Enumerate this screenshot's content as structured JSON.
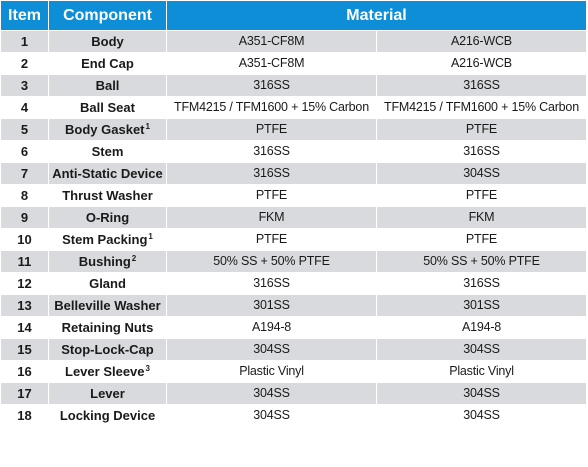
{
  "header": {
    "item": "Item",
    "component": "Component",
    "material": "Material"
  },
  "rows": [
    {
      "item": "1",
      "component": "Body",
      "fn": "",
      "material_1": "A351-CF8M",
      "material_2": "A216-WCB"
    },
    {
      "item": "2",
      "component": "End Cap",
      "fn": "",
      "material_1": "A351-CF8M",
      "material_2": "A216-WCB"
    },
    {
      "item": "3",
      "component": "Ball",
      "fn": "",
      "material_1": "316SS",
      "material_2": "316SS"
    },
    {
      "item": "4",
      "component": "Ball Seat",
      "fn": "",
      "material_1": "TFM4215 / TFM1600 + 15% Carbon",
      "material_2": "TFM4215 / TFM1600 + 15% Carbon"
    },
    {
      "item": "5",
      "component": "Body Gasket",
      "fn": "1",
      "material_1": "PTFE",
      "material_2": "PTFE"
    },
    {
      "item": "6",
      "component": "Stem",
      "fn": "",
      "material_1": "316SS",
      "material_2": "316SS"
    },
    {
      "item": "7",
      "component": "Anti-Static Device",
      "fn": "",
      "material_1": "316SS",
      "material_2": "304SS"
    },
    {
      "item": "8",
      "component": "Thrust Washer",
      "fn": "",
      "material_1": "PTFE",
      "material_2": "PTFE"
    },
    {
      "item": "9",
      "component": "O-Ring",
      "fn": "",
      "material_1": "FKM",
      "material_2": "FKM"
    },
    {
      "item": "10",
      "component": "Stem Packing",
      "fn": "1",
      "material_1": "PTFE",
      "material_2": "PTFE"
    },
    {
      "item": "11",
      "component": "Bushing",
      "fn": "2",
      "material_1": "50% SS + 50% PTFE",
      "material_2": "50% SS + 50% PTFE"
    },
    {
      "item": "12",
      "component": "Gland",
      "fn": "",
      "material_1": "316SS",
      "material_2": "316SS"
    },
    {
      "item": "13",
      "component": "Belleville Washer",
      "fn": "",
      "material_1": "301SS",
      "material_2": "301SS"
    },
    {
      "item": "14",
      "component": "Retaining Nuts",
      "fn": "",
      "material_1": "A194-8",
      "material_2": "A194-8"
    },
    {
      "item": "15",
      "component": "Stop-Lock-Cap",
      "fn": "",
      "material_1": "304SS",
      "material_2": "304SS"
    },
    {
      "item": "16",
      "component": "Lever Sleeve",
      "fn": "3",
      "material_1": "Plastic Vinyl",
      "material_2": "Plastic Vinyl"
    },
    {
      "item": "17",
      "component": "Lever",
      "fn": "",
      "material_1": "304SS",
      "material_2": "304SS"
    },
    {
      "item": "18",
      "component": "Locking Device",
      "fn": "",
      "material_1": "304SS",
      "material_2": "304SS"
    }
  ],
  "colors": {
    "header_bg": "#0e8ed6",
    "header_text": "#ffffff",
    "row_shaded": "#d8dadd",
    "row_plain": "#ffffff"
  }
}
